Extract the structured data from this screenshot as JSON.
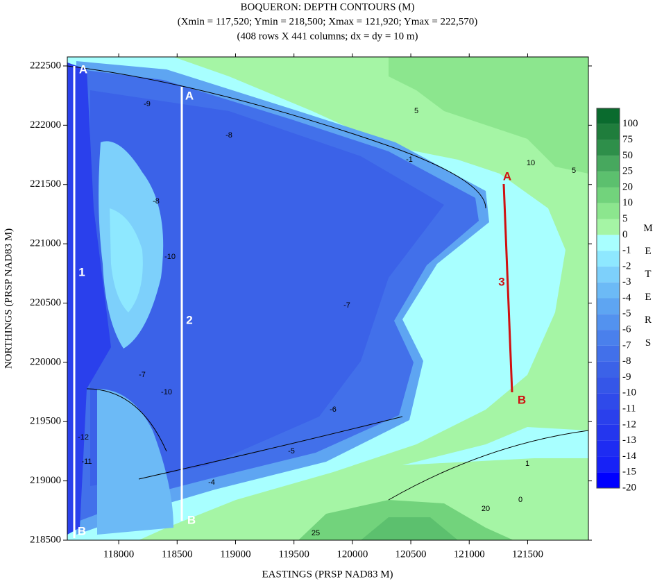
{
  "chart_data": {
    "type": "contour",
    "title": "BOQUERON: DEPTH CONTOURS (M)",
    "subtitle": "(Xmin = 117,520; Ymin = 218,500; Xmax = 121,920; Ymax = 222,570)",
    "subtitle2": "(408 rows X 441 columns; dx = dy = 10 m)",
    "x_label": "EASTINGS (PRSP NAD83 M)",
    "y_label": "NORTHINGS (PRSP NAD83 M)",
    "xlim": [
      117560,
      122020
    ],
    "ylim": [
      218500,
      222576
    ],
    "xticks": [
      118000,
      118500,
      119000,
      119500,
      120000,
      120500,
      121000,
      121500
    ],
    "yticks": [
      218500,
      219000,
      219500,
      220000,
      220500,
      221000,
      221500,
      222000,
      222500
    ],
    "colorbar_title": "METERS",
    "levels": [
      100,
      75,
      50,
      25,
      20,
      10,
      5,
      0,
      -1,
      -2,
      -3,
      -4,
      -5,
      -6,
      -7,
      -8,
      -9,
      -10,
      -11,
      -12,
      -13,
      -14,
      -15,
      -20
    ],
    "colors": [
      "#0a6b2e",
      "#1f7d3c",
      "#2e8f4a",
      "#47a85e",
      "#5cc06e",
      "#72d37c",
      "#8ce68e",
      "#a5f5a5",
      "#a8ffff",
      "#8ee8ff",
      "#7dd0fb",
      "#6cbaf6",
      "#5ea5f2",
      "#5392ef",
      "#4a80ec",
      "#4270ea",
      "#3b62e8",
      "#3556e8",
      "#2f4aea",
      "#2a40ec",
      "#2436ee",
      "#1e2cf2",
      "#1722f6",
      "#0000ff"
    ],
    "transect_labels": [
      "A",
      "B",
      "1",
      "A",
      "B",
      "2",
      "A",
      "B",
      "3"
    ],
    "contour_labels": [
      "-9",
      "-10",
      "-8",
      "-7",
      "-6",
      "-5",
      "-4",
      "-1",
      "0",
      "5",
      "10",
      "5",
      "20",
      "25",
      "1",
      "-11",
      "-12",
      "-8",
      "-10",
      "-7"
    ]
  }
}
